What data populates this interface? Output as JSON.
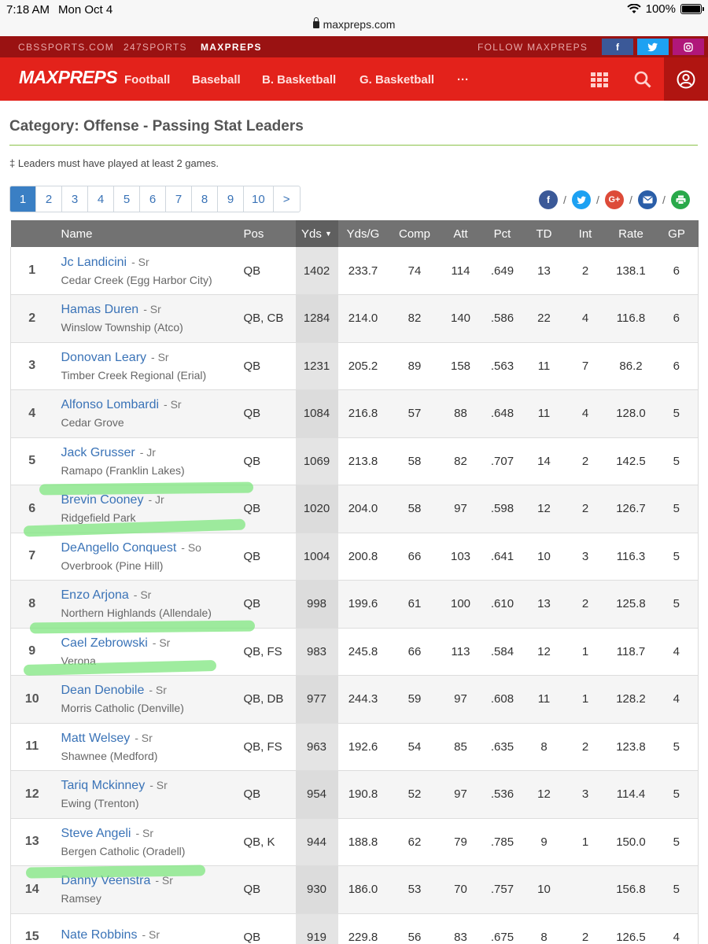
{
  "status": {
    "time": "7:18 AM",
    "date": "Mon Oct 4",
    "url": "maxpreps.com",
    "battery": "100%"
  },
  "network": {
    "links": [
      "CBSSPORTS.COM",
      "247SPORTS",
      "MAXPREPS"
    ],
    "follow": "FOLLOW MAXPREPS",
    "socials": [
      "f",
      "t",
      "ig"
    ]
  },
  "nav": {
    "logo": "MAXPREPS",
    "items": [
      "Football",
      "Baseball",
      "B. Basketball",
      "G. Basketball",
      "···"
    ]
  },
  "page": {
    "title": "Category: Offense - Passing Stat Leaders",
    "note": "‡ Leaders must have played at least 2 games."
  },
  "pager": {
    "pages": [
      "1",
      "2",
      "3",
      "4",
      "5",
      "6",
      "7",
      "8",
      "9",
      "10",
      ">"
    ],
    "active": "1"
  },
  "table": {
    "columns": [
      "",
      "Name",
      "Pos",
      "Yds",
      "Yds/G",
      "Comp",
      "Att",
      "Pct",
      "TD",
      "Int",
      "Rate",
      "GP"
    ],
    "sorted_column": "Yds",
    "rows": [
      {
        "rank": "1",
        "name": "Jc Landicini",
        "class": "- Sr",
        "school": "Cedar Creek (Egg Harbor City)",
        "pos": "QB",
        "yds": "1402",
        "ydsg": "233.7",
        "comp": "74",
        "att": "114",
        "pct": ".649",
        "td": "13",
        "int": "2",
        "rate": "138.1",
        "gp": "6"
      },
      {
        "rank": "2",
        "name": "Hamas Duren",
        "class": "- Sr",
        "school": "Winslow Township (Atco)",
        "pos": "QB, CB",
        "yds": "1284",
        "ydsg": "214.0",
        "comp": "82",
        "att": "140",
        "pct": ".586",
        "td": "22",
        "int": "4",
        "rate": "116.8",
        "gp": "6"
      },
      {
        "rank": "3",
        "name": "Donovan Leary",
        "class": "- Sr",
        "school": "Timber Creek Regional (Erial)",
        "pos": "QB",
        "yds": "1231",
        "ydsg": "205.2",
        "comp": "89",
        "att": "158",
        "pct": ".563",
        "td": "11",
        "int": "7",
        "rate": "86.2",
        "gp": "6"
      },
      {
        "rank": "4",
        "name": "Alfonso Lombardi",
        "class": "- Sr",
        "school": "Cedar Grove",
        "pos": "QB",
        "yds": "1084",
        "ydsg": "216.8",
        "comp": "57",
        "att": "88",
        "pct": ".648",
        "td": "11",
        "int": "4",
        "rate": "128.0",
        "gp": "5"
      },
      {
        "rank": "5",
        "name": "Jack Grusser",
        "class": "- Jr",
        "school": "Ramapo (Franklin Lakes)",
        "pos": "QB",
        "yds": "1069",
        "ydsg": "213.8",
        "comp": "58",
        "att": "82",
        "pct": ".707",
        "td": "14",
        "int": "2",
        "rate": "142.5",
        "gp": "5"
      },
      {
        "rank": "6",
        "name": "Brevin Cooney",
        "class": "- Jr",
        "school": "Ridgefield Park",
        "pos": "QB",
        "yds": "1020",
        "ydsg": "204.0",
        "comp": "58",
        "att": "97",
        "pct": ".598",
        "td": "12",
        "int": "2",
        "rate": "126.7",
        "gp": "5"
      },
      {
        "rank": "7",
        "name": "DeAngello Conquest",
        "class": "- So",
        "school": "Overbrook (Pine Hill)",
        "pos": "QB",
        "yds": "1004",
        "ydsg": "200.8",
        "comp": "66",
        "att": "103",
        "pct": ".641",
        "td": "10",
        "int": "3",
        "rate": "116.3",
        "gp": "5"
      },
      {
        "rank": "8",
        "name": "Enzo Arjona",
        "class": "- Sr",
        "school": "Northern Highlands (Allendale)",
        "pos": "QB",
        "yds": "998",
        "ydsg": "199.6",
        "comp": "61",
        "att": "100",
        "pct": ".610",
        "td": "13",
        "int": "2",
        "rate": "125.8",
        "gp": "5"
      },
      {
        "rank": "9",
        "name": "Cael Zebrowski",
        "class": "- Sr",
        "school": "Verona",
        "pos": "QB, FS",
        "yds": "983",
        "ydsg": "245.8",
        "comp": "66",
        "att": "113",
        "pct": ".584",
        "td": "12",
        "int": "1",
        "rate": "118.7",
        "gp": "4"
      },
      {
        "rank": "10",
        "name": "Dean Denobile",
        "class": "- Sr",
        "school": "Morris Catholic (Denville)",
        "pos": "QB, DB",
        "yds": "977",
        "ydsg": "244.3",
        "comp": "59",
        "att": "97",
        "pct": ".608",
        "td": "11",
        "int": "1",
        "rate": "128.2",
        "gp": "4"
      },
      {
        "rank": "11",
        "name": "Matt Welsey",
        "class": "- Sr",
        "school": "Shawnee (Medford)",
        "pos": "QB, FS",
        "yds": "963",
        "ydsg": "192.6",
        "comp": "54",
        "att": "85",
        "pct": ".635",
        "td": "8",
        "int": "2",
        "rate": "123.8",
        "gp": "5"
      },
      {
        "rank": "12",
        "name": "Tariq Mckinney",
        "class": "- Sr",
        "school": "Ewing (Trenton)",
        "pos": "QB",
        "yds": "954",
        "ydsg": "190.8",
        "comp": "52",
        "att": "97",
        "pct": ".536",
        "td": "12",
        "int": "3",
        "rate": "114.4",
        "gp": "5"
      },
      {
        "rank": "13",
        "name": "Steve Angeli",
        "class": "- Sr",
        "school": "Bergen Catholic (Oradell)",
        "pos": "QB, K",
        "yds": "944",
        "ydsg": "188.8",
        "comp": "62",
        "att": "79",
        "pct": ".785",
        "td": "9",
        "int": "1",
        "rate": "150.0",
        "gp": "5"
      },
      {
        "rank": "14",
        "name": "Danny Veenstra",
        "class": "- Sr",
        "school": "Ramsey",
        "pos": "QB",
        "yds": "930",
        "ydsg": "186.0",
        "comp": "53",
        "att": "70",
        "pct": ".757",
        "td": "10",
        "int": "",
        "rate": "156.8",
        "gp": "5"
      },
      {
        "rank": "15",
        "name": "Nate Robbins",
        "class": "- Sr",
        "school": "",
        "pos": "QB",
        "yds": "919",
        "ydsg": "229.8",
        "comp": "56",
        "att": "83",
        "pct": ".675",
        "td": "8",
        "int": "2",
        "rate": "126.5",
        "gp": "4"
      }
    ]
  },
  "colors": {
    "brand_red": "#e3221b",
    "dark_red": "#9a1212",
    "link_blue": "#3a73b7",
    "highlight_green": "#7fe67f"
  }
}
